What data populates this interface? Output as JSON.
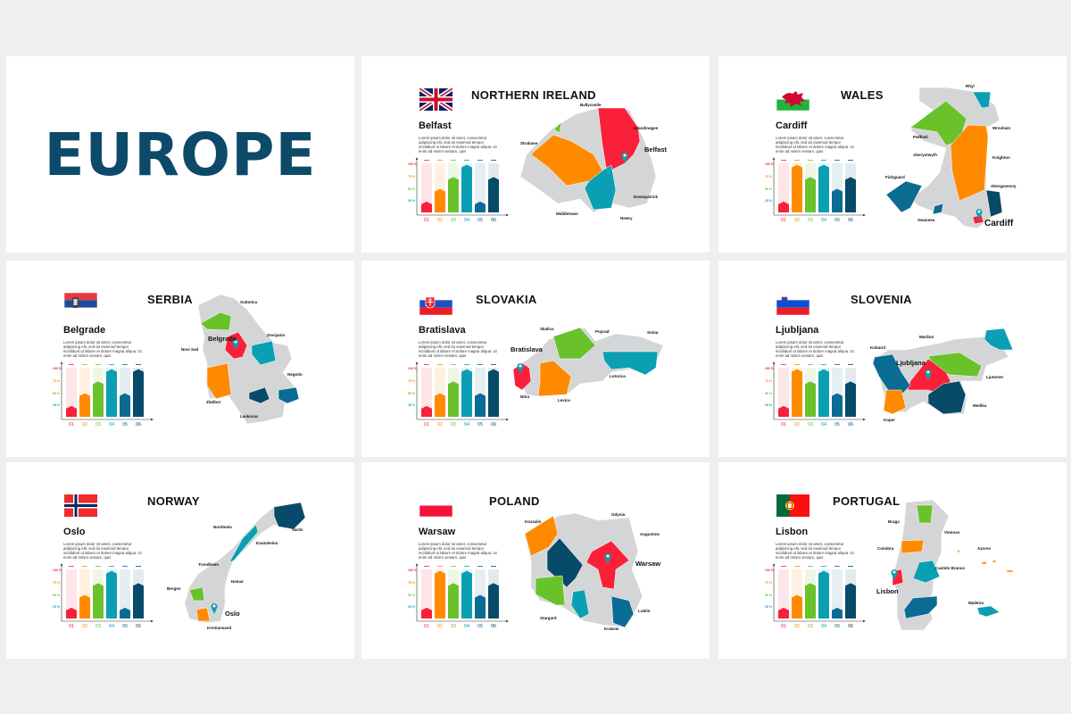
{
  "cover": {
    "title": "EUROPE"
  },
  "colors": {
    "brand": "#0d4a6a",
    "red": "#fa2039",
    "orange": "#ff8a00",
    "green": "#6ac22b",
    "teal": "#0b9fb3",
    "blue": "#0a6c93",
    "navy": "#074a6a",
    "land": "#d4d5d6",
    "background": "#efefef"
  },
  "cards": [
    {
      "country": "NORTHERN IRELAND",
      "flag": "united-kingdom-flag",
      "capital": "Belfast",
      "description": "Lorem ipsum dolor sit amet, consectetur adipiscing elit, sed do eiusmod tempor incididunt ut labore et dolore magna aliqua. Ut enim ad minim veniam, quis",
      "map_labels": [
        "Ballycastle",
        "Islandmagee",
        "Strabane",
        "Belfast",
        "Downpatrick",
        "Middletown",
        "Newry"
      ]
    },
    {
      "country": "WALES",
      "flag": "wales-flag",
      "capital": "Cardiff",
      "description": "Lorem ipsum dolor sit amet, consectetur adipiscing elit, sed do eiusmod tempor incididunt ut labore et dolore magna aliqua. Ut enim ad minim veniam, quis",
      "map_labels": [
        "Rhyl",
        "Wrexham",
        "Pwllheli",
        "Aberystwyth",
        "Knighton",
        "Fishguard",
        "Abergavenny",
        "Swansea",
        "Cardiff"
      ]
    },
    {
      "country": "SERBIA",
      "flag": "serbia-flag",
      "capital": "Belgrade",
      "description": "Lorem ipsum dolor sit amet, consectetur adipiscing elit, sed do eiusmod tempor incididunt ut labore et dolore magna aliqua. Ut enim ad minim veniam, quis",
      "map_labels": [
        "Subotica",
        "Zrenjanin",
        "Belgrade",
        "Novi Sad",
        "Negotin",
        "Zlatibor",
        "Leskovac"
      ]
    },
    {
      "country": "SLOVAKIA",
      "flag": "slovakia-flag",
      "capital": "Bratislava",
      "description": "Lorem ipsum dolor sit amet, consectetur adipiscing elit, sed do eiusmod tempor incididunt ut labore et dolore magna aliqua. Ut enim ad minim veniam, quis",
      "map_labels": [
        "Skalica",
        "Poprad",
        "Snina",
        "Bratislava",
        "Lotorica",
        "Nitra",
        "Levice"
      ]
    },
    {
      "country": "SLOVENIA",
      "flag": "slovenia-flag",
      "capital": "Ljubljana",
      "description": "Lorem ipsum dolor sit amet, consectetur adipiscing elit, sed do eiusmod tempor incididunt ut labore et dolore magna aliqua. Ut enim ad minim veniam, quis",
      "map_labels": [
        "Maribor",
        "Kobarid",
        "Ljubljana",
        "Ljutomer",
        "Metlika",
        "Koper"
      ]
    },
    {
      "country": "NORWAY",
      "flag": "norway-flag",
      "capital": "Oslo",
      "description": "Lorem ipsum dolor sit amet, consectetur adipiscing elit, sed do eiusmod tempor incididunt ut labore et dolore magna aliqua. Ut enim ad minim veniam, quis",
      "map_labels": [
        "Nordmela",
        "Vardo",
        "Kautokeino",
        "Trondheim",
        "Hamar",
        "Bergen",
        "Oslo",
        "Kristiansand"
      ]
    },
    {
      "country": "POLAND",
      "flag": "poland-flag",
      "capital": "Warsaw",
      "description": "Lorem ipsum dolor sit amet, consectetur adipiscing elit, sed do eiusmod tempor incididunt ut labore et dolore magna aliqua. Ut enim ad minim veniam, quis",
      "map_labels": [
        "Gdynia",
        "Koszalin",
        "Augustow",
        "Warsaw",
        "Stargard",
        "Lublin",
        "Krakow"
      ]
    },
    {
      "country": "PORTUGAL",
      "flag": "portugal-flag",
      "capital": "Lisbon",
      "description": "Lorem ipsum dolor sit amet, consectetur adipiscing elit, sed do eiusmod tempor incididunt ut labore et dolore magna aliqua. Ut enim ad minim veniam, quis",
      "map_labels": [
        "Braga",
        "Vimioso",
        "Coimbra",
        "Azores",
        "Castelo Branco",
        "Lisbon",
        "Madeira"
      ]
    }
  ],
  "chart_data": [
    {
      "type": "bar",
      "categories": [
        "01",
        "02",
        "03",
        "04",
        "05",
        "06"
      ],
      "values": [
        22,
        48,
        72,
        97,
        22,
        72
      ],
      "yticks": [
        "100 %",
        "75 %",
        "50 %",
        "25 %"
      ],
      "ylim": [
        0,
        100
      ]
    },
    {
      "type": "bar",
      "categories": [
        "01",
        "02",
        "03",
        "04",
        "05",
        "06"
      ],
      "values": [
        22,
        97,
        72,
        97,
        48,
        72
      ],
      "yticks": [
        "100 %",
        "75 %",
        "50 %",
        "25 %"
      ],
      "ylim": [
        0,
        100
      ]
    },
    {
      "type": "bar",
      "categories": [
        "01",
        "02",
        "03",
        "04",
        "05",
        "06"
      ],
      "values": [
        22,
        48,
        72,
        97,
        48,
        97
      ],
      "yticks": [
        "100 %",
        "75 %",
        "50 %",
        "25 %"
      ],
      "ylim": [
        0,
        100
      ]
    },
    {
      "type": "bar",
      "categories": [
        "01",
        "02",
        "03",
        "04",
        "05",
        "06"
      ],
      "values": [
        22,
        48,
        72,
        97,
        48,
        97
      ],
      "yticks": [
        "100 %",
        "75 %",
        "50 %",
        "25 %"
      ],
      "ylim": [
        0,
        100
      ]
    },
    {
      "type": "bar",
      "categories": [
        "01",
        "02",
        "03",
        "04",
        "05",
        "06"
      ],
      "values": [
        22,
        97,
        72,
        97,
        48,
        72
      ],
      "yticks": [
        "100 %",
        "75 %",
        "50 %",
        "25 %"
      ],
      "ylim": [
        0,
        100
      ]
    },
    {
      "type": "bar",
      "categories": [
        "01",
        "02",
        "03",
        "04",
        "05",
        "06"
      ],
      "values": [
        22,
        48,
        72,
        97,
        22,
        72
      ],
      "yticks": [
        "100 %",
        "75 %",
        "50 %",
        "25 %"
      ],
      "ylim": [
        0,
        100
      ]
    },
    {
      "type": "bar",
      "categories": [
        "01",
        "02",
        "03",
        "04",
        "05",
        "06"
      ],
      "values": [
        22,
        97,
        72,
        97,
        48,
        72
      ],
      "yticks": [
        "100 %",
        "75 %",
        "50 %",
        "25 %"
      ],
      "ylim": [
        0,
        100
      ]
    },
    {
      "type": "bar",
      "categories": [
        "01",
        "02",
        "03",
        "04",
        "05",
        "06"
      ],
      "values": [
        22,
        48,
        72,
        97,
        22,
        72
      ],
      "yticks": [
        "100 %",
        "75 %",
        "50 %",
        "25 %"
      ],
      "ylim": [
        0,
        100
      ]
    }
  ]
}
